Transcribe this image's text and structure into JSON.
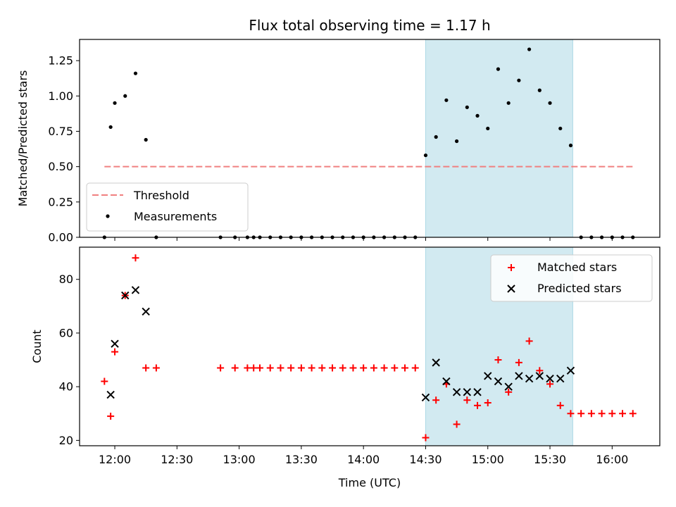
{
  "chart_data": [
    {
      "type": "scatter",
      "panel": "top",
      "title": "Flux total observing time = 1.17 h",
      "ylabel": "Matched/Predicted stars",
      "xlabel": "",
      "ylim": [
        0,
        1.4
      ],
      "xlim_minutes_since_midnight_utc": null,
      "yticks": [
        0.0,
        0.25,
        0.5,
        0.75,
        1.0,
        1.25
      ],
      "ytick_labels": [
        "0.00",
        "0.25",
        "0.50",
        "0.75",
        "1.00",
        "1.25"
      ],
      "threshold": {
        "name": "Threshold",
        "value": 0.5,
        "x_start": "11:55",
        "x_end": "16:10",
        "color": "#f08080",
        "style": "dashed"
      },
      "highlight_span": {
        "x_start": "14:30",
        "x_end": "15:41",
        "color": "#add8e6"
      },
      "series": [
        {
          "name": "Measurements",
          "color": "#000000",
          "marker": "dot",
          "points": [
            {
              "x": "11:55",
              "y": 0.0
            },
            {
              "x": "11:58",
              "y": 0.78
            },
            {
              "x": "12:00",
              "y": 0.95
            },
            {
              "x": "12:05",
              "y": 1.0
            },
            {
              "x": "12:10",
              "y": 1.16
            },
            {
              "x": "12:15",
              "y": 0.69
            },
            {
              "x": "12:20",
              "y": 0.0
            },
            {
              "x": "12:51",
              "y": 0.0
            },
            {
              "x": "12:58",
              "y": 0.0
            },
            {
              "x": "13:04",
              "y": 0.0
            },
            {
              "x": "13:07",
              "y": 0.0
            },
            {
              "x": "13:10",
              "y": 0.0
            },
            {
              "x": "13:15",
              "y": 0.0
            },
            {
              "x": "13:20",
              "y": 0.0
            },
            {
              "x": "13:25",
              "y": 0.0
            },
            {
              "x": "13:30",
              "y": 0.0
            },
            {
              "x": "13:35",
              "y": 0.0
            },
            {
              "x": "13:40",
              "y": 0.0
            },
            {
              "x": "13:45",
              "y": 0.0
            },
            {
              "x": "13:50",
              "y": 0.0
            },
            {
              "x": "13:55",
              "y": 0.0
            },
            {
              "x": "14:00",
              "y": 0.0
            },
            {
              "x": "14:05",
              "y": 0.0
            },
            {
              "x": "14:10",
              "y": 0.0
            },
            {
              "x": "14:15",
              "y": 0.0
            },
            {
              "x": "14:20",
              "y": 0.0
            },
            {
              "x": "14:25",
              "y": 0.0
            },
            {
              "x": "14:30",
              "y": 0.58
            },
            {
              "x": "14:35",
              "y": 0.71
            },
            {
              "x": "14:40",
              "y": 0.97
            },
            {
              "x": "14:45",
              "y": 0.68
            },
            {
              "x": "14:50",
              "y": 0.92
            },
            {
              "x": "14:55",
              "y": 0.86
            },
            {
              "x": "15:00",
              "y": 0.77
            },
            {
              "x": "15:05",
              "y": 1.19
            },
            {
              "x": "15:10",
              "y": 0.95
            },
            {
              "x": "15:15",
              "y": 1.11
            },
            {
              "x": "15:20",
              "y": 1.33
            },
            {
              "x": "15:25",
              "y": 1.04
            },
            {
              "x": "15:30",
              "y": 0.95
            },
            {
              "x": "15:35",
              "y": 0.77
            },
            {
              "x": "15:40",
              "y": 0.65
            },
            {
              "x": "15:45",
              "y": 0.0
            },
            {
              "x": "15:50",
              "y": 0.0
            },
            {
              "x": "15:55",
              "y": 0.0
            },
            {
              "x": "16:00",
              "y": 0.0
            },
            {
              "x": "16:05",
              "y": 0.0
            },
            {
              "x": "16:10",
              "y": 0.0
            }
          ]
        }
      ],
      "legend": {
        "placement": "lower-left",
        "entries": [
          "Threshold",
          "Measurements"
        ]
      }
    },
    {
      "type": "scatter",
      "panel": "bottom",
      "title": "",
      "xlabel": "Time (UTC)",
      "ylabel": "Count",
      "ylim": [
        18,
        92
      ],
      "yticks": [
        20,
        40,
        60,
        80
      ],
      "ytick_labels": [
        "20",
        "40",
        "60",
        "80"
      ],
      "xticks": [
        "12:00",
        "12:30",
        "13:00",
        "13:30",
        "14:00",
        "14:30",
        "15:00",
        "15:30",
        "16:00"
      ],
      "xtick_labels": [
        "12:00",
        "12:30",
        "13:00",
        "13:30",
        "14:00",
        "14:30",
        "15:00",
        "15:30",
        "16:00"
      ],
      "highlight_span": {
        "x_start": "14:30",
        "x_end": "15:41",
        "color": "#add8e6"
      },
      "series": [
        {
          "name": "Matched stars",
          "color": "#ff0000",
          "marker": "plus",
          "points": [
            {
              "x": "11:55",
              "y": 42
            },
            {
              "x": "11:58",
              "y": 29
            },
            {
              "x": "12:00",
              "y": 53
            },
            {
              "x": "12:05",
              "y": 74
            },
            {
              "x": "12:10",
              "y": 88
            },
            {
              "x": "12:15",
              "y": 47
            },
            {
              "x": "12:20",
              "y": 47
            },
            {
              "x": "12:51",
              "y": 47
            },
            {
              "x": "12:58",
              "y": 47
            },
            {
              "x": "13:04",
              "y": 47
            },
            {
              "x": "13:07",
              "y": 47
            },
            {
              "x": "13:10",
              "y": 47
            },
            {
              "x": "13:15",
              "y": 47
            },
            {
              "x": "13:20",
              "y": 47
            },
            {
              "x": "13:25",
              "y": 47
            },
            {
              "x": "13:30",
              "y": 47
            },
            {
              "x": "13:35",
              "y": 47
            },
            {
              "x": "13:40",
              "y": 47
            },
            {
              "x": "13:45",
              "y": 47
            },
            {
              "x": "13:50",
              "y": 47
            },
            {
              "x": "13:55",
              "y": 47
            },
            {
              "x": "14:00",
              "y": 47
            },
            {
              "x": "14:05",
              "y": 47
            },
            {
              "x": "14:10",
              "y": 47
            },
            {
              "x": "14:15",
              "y": 47
            },
            {
              "x": "14:20",
              "y": 47
            },
            {
              "x": "14:25",
              "y": 47
            },
            {
              "x": "14:30",
              "y": 21
            },
            {
              "x": "14:35",
              "y": 35
            },
            {
              "x": "14:40",
              "y": 41
            },
            {
              "x": "14:45",
              "y": 26
            },
            {
              "x": "14:50",
              "y": 35
            },
            {
              "x": "14:55",
              "y": 33
            },
            {
              "x": "15:00",
              "y": 34
            },
            {
              "x": "15:05",
              "y": 50
            },
            {
              "x": "15:10",
              "y": 38
            },
            {
              "x": "15:15",
              "y": 49
            },
            {
              "x": "15:20",
              "y": 57
            },
            {
              "x": "15:25",
              "y": 46
            },
            {
              "x": "15:30",
              "y": 41
            },
            {
              "x": "15:35",
              "y": 33
            },
            {
              "x": "15:40",
              "y": 30
            },
            {
              "x": "15:45",
              "y": 30
            },
            {
              "x": "15:50",
              "y": 30
            },
            {
              "x": "15:55",
              "y": 30
            },
            {
              "x": "16:00",
              "y": 30
            },
            {
              "x": "16:05",
              "y": 30
            },
            {
              "x": "16:10",
              "y": 30
            }
          ]
        },
        {
          "name": "Predicted stars",
          "color": "#000000",
          "marker": "x",
          "points": [
            {
              "x": "11:58",
              "y": 37
            },
            {
              "x": "12:00",
              "y": 56
            },
            {
              "x": "12:05",
              "y": 74
            },
            {
              "x": "12:10",
              "y": 76
            },
            {
              "x": "12:15",
              "y": 68
            },
            {
              "x": "14:30",
              "y": 36
            },
            {
              "x": "14:35",
              "y": 49
            },
            {
              "x": "14:40",
              "y": 42
            },
            {
              "x": "14:45",
              "y": 38
            },
            {
              "x": "14:50",
              "y": 38
            },
            {
              "x": "14:55",
              "y": 38
            },
            {
              "x": "15:00",
              "y": 44
            },
            {
              "x": "15:05",
              "y": 42
            },
            {
              "x": "15:10",
              "y": 40
            },
            {
              "x": "15:15",
              "y": 44
            },
            {
              "x": "15:20",
              "y": 43
            },
            {
              "x": "15:25",
              "y": 44
            },
            {
              "x": "15:30",
              "y": 43
            },
            {
              "x": "15:35",
              "y": 43
            },
            {
              "x": "15:40",
              "y": 46
            }
          ]
        }
      ],
      "legend": {
        "placement": "upper-right",
        "entries": [
          "Matched stars",
          "Predicted stars"
        ]
      }
    }
  ]
}
